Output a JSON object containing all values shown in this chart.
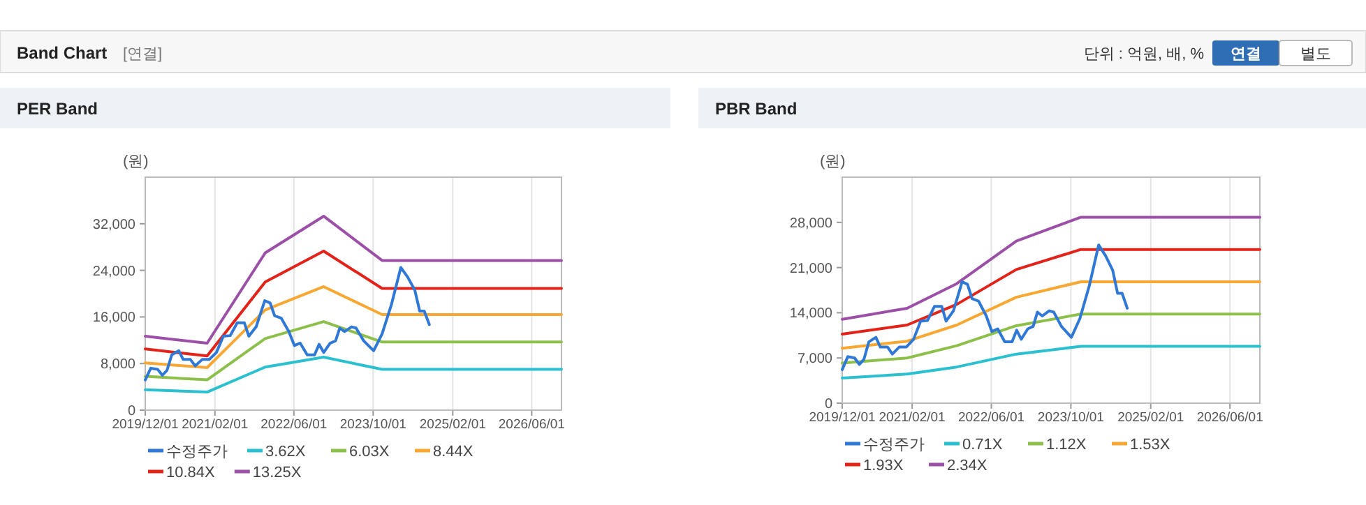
{
  "chart_data": [
    {
      "type": "line",
      "title": "PER Band",
      "ylabel": "(원)",
      "annotations": [
        "Band Chart",
        "[연결]",
        "단위 : 억원, 배, %",
        "연결",
        "별도"
      ],
      "xlim": [
        "2019-12-01",
        "2026-12-01"
      ],
      "xticks": [
        {
          "value": "2019-12-01",
          "label": "2019/12/01"
        },
        {
          "value": "2021-02-01",
          "label": "2021/02/01"
        },
        {
          "value": "2022-06-01",
          "label": "2022/06/01"
        },
        {
          "value": "2023-10-01",
          "label": "2023/10/01"
        },
        {
          "value": "2025-02-01",
          "label": "2025/02/01"
        },
        {
          "value": "2026-06-01",
          "label": "2026/06/01"
        }
      ],
      "ylim": [
        0,
        40000
      ],
      "yticks": [
        {
          "value": 0,
          "label": "0"
        },
        {
          "value": 8000,
          "label": "8,000"
        },
        {
          "value": 16000,
          "label": "16,000"
        },
        {
          "value": 24000,
          "label": "24,000"
        },
        {
          "value": 32000,
          "label": "32,000"
        }
      ],
      "grid": "x",
      "legend": "bottom",
      "series": [
        {
          "name": "수정주가",
          "color": "#2f78d6",
          "x": [
            "2019-12-01",
            "2020-01-04",
            "2020-02-15",
            "2020-03-15",
            "2020-04-12",
            "2020-05-12",
            "2020-06-24",
            "2020-07-21",
            "2020-09-03",
            "2020-10-03",
            "2020-11-15",
            "2020-12-28",
            "2021-02-10",
            "2021-03-25",
            "2021-05-06",
            "2021-06-18",
            "2021-08-01",
            "2021-08-28",
            "2021-10-12",
            "2021-12-04",
            "2022-01-06",
            "2022-02-03",
            "2022-03-15",
            "2022-05-01",
            "2022-06-04",
            "2022-07-10",
            "2022-08-22",
            "2022-10-06",
            "2022-11-03",
            "2022-12-01",
            "2023-01-10",
            "2023-02-12",
            "2023-03-10",
            "2023-04-09",
            "2023-05-21",
            "2023-06-18",
            "2023-08-04",
            "2023-10-04",
            "2023-11-25",
            "2024-01-22",
            "2024-03-19",
            "2024-05-01",
            "2024-06-13",
            "2024-07-13",
            "2024-08-10",
            "2024-09-10"
          ],
          "values": [
            5200,
            7200,
            7000,
            6000,
            6800,
            9500,
            10200,
            8700,
            8700,
            7600,
            8700,
            8700,
            9900,
            12700,
            12800,
            15000,
            15000,
            12700,
            14300,
            18800,
            18400,
            16200,
            15800,
            13500,
            11100,
            11500,
            9500,
            9500,
            11300,
            9900,
            11500,
            11900,
            14100,
            13500,
            14300,
            14100,
            11900,
            10200,
            13100,
            18200,
            24500,
            22800,
            20600,
            17000,
            17000,
            14700
          ]
        },
        {
          "name": "3.62X",
          "color": "#2bc0d0",
          "x": [
            "2019-12-01",
            "2020-12-15",
            "2021-12-07",
            "2022-12-01",
            "2023-11-25",
            "2026-12-01"
          ],
          "values": [
            3500,
            3100,
            7400,
            9100,
            7000,
            7000
          ]
        },
        {
          "name": "6.03X",
          "color": "#8dc04b",
          "x": [
            "2019-12-01",
            "2020-12-15",
            "2021-12-07",
            "2022-12-01",
            "2023-11-25",
            "2026-12-01"
          ],
          "values": [
            5800,
            5200,
            12300,
            15200,
            11700,
            11700
          ]
        },
        {
          "name": "8.44X",
          "color": "#f8a832",
          "x": [
            "2019-12-01",
            "2020-12-15",
            "2021-12-07",
            "2022-12-01",
            "2023-11-25",
            "2026-12-01"
          ],
          "values": [
            8100,
            7300,
            17200,
            21200,
            16400,
            16400
          ]
        },
        {
          "name": "10.84X",
          "color": "#e2231a",
          "x": [
            "2019-12-01",
            "2020-12-15",
            "2021-12-07",
            "2022-12-01",
            "2023-11-25",
            "2026-12-01"
          ],
          "values": [
            10500,
            9300,
            22000,
            27300,
            20900,
            20900
          ]
        },
        {
          "name": "13.25X",
          "color": "#9b4fa6",
          "x": [
            "2019-12-01",
            "2020-12-15",
            "2021-12-07",
            "2022-12-01",
            "2023-11-25",
            "2026-12-01"
          ],
          "values": [
            12700,
            11500,
            27000,
            33300,
            25700,
            25700
          ]
        }
      ]
    },
    {
      "type": "line",
      "title": "PBR Band",
      "ylabel": "(원)",
      "xlim": [
        "2019-12-01",
        "2026-12-01"
      ],
      "xticks": [
        {
          "value": "2019-12-01",
          "label": "2019/12/01"
        },
        {
          "value": "2021-02-01",
          "label": "2021/02/01"
        },
        {
          "value": "2022-06-01",
          "label": "2022/06/01"
        },
        {
          "value": "2023-10-01",
          "label": "2023/10/01"
        },
        {
          "value": "2025-02-01",
          "label": "2025/02/01"
        },
        {
          "value": "2026-06-01",
          "label": "2026/06/01"
        }
      ],
      "ylim": [
        0,
        35000
      ],
      "yticks": [
        {
          "value": 0,
          "label": "0"
        },
        {
          "value": 7000,
          "label": "7,000"
        },
        {
          "value": 14000,
          "label": "14,000"
        },
        {
          "value": 21000,
          "label": "21,000"
        },
        {
          "value": 28000,
          "label": "28,000"
        }
      ],
      "grid": "x",
      "legend": "bottom",
      "series": [
        {
          "name": "수정주가",
          "color": "#2f78d6",
          "x": [
            "2019-12-01",
            "2020-01-04",
            "2020-02-15",
            "2020-03-15",
            "2020-04-12",
            "2020-05-12",
            "2020-06-24",
            "2020-07-21",
            "2020-09-03",
            "2020-10-03",
            "2020-11-15",
            "2020-12-28",
            "2021-02-10",
            "2021-03-25",
            "2021-05-06",
            "2021-06-18",
            "2021-08-01",
            "2021-08-28",
            "2021-10-12",
            "2021-12-04",
            "2022-01-06",
            "2022-02-03",
            "2022-03-15",
            "2022-05-01",
            "2022-06-04",
            "2022-07-10",
            "2022-08-22",
            "2022-10-06",
            "2022-11-03",
            "2022-12-01",
            "2023-01-10",
            "2023-02-12",
            "2023-03-10",
            "2023-04-09",
            "2023-05-21",
            "2023-06-18",
            "2023-08-04",
            "2023-10-04",
            "2023-11-25",
            "2024-01-22",
            "2024-03-19",
            "2024-05-01",
            "2024-06-13",
            "2024-07-13",
            "2024-08-10",
            "2024-09-10"
          ],
          "values": [
            5200,
            7200,
            7000,
            6000,
            6800,
            9500,
            10200,
            8700,
            8700,
            7600,
            8700,
            8700,
            9900,
            12700,
            12800,
            15000,
            15000,
            12700,
            14300,
            18800,
            18400,
            16200,
            15800,
            13500,
            11100,
            11500,
            9500,
            9500,
            11300,
            9900,
            11500,
            11900,
            14100,
            13500,
            14300,
            14100,
            11900,
            10200,
            13100,
            18200,
            24500,
            22800,
            20600,
            17000,
            17000,
            14700
          ]
        },
        {
          "name": "0.71X",
          "color": "#2bc0d0",
          "x": [
            "2019-12-01",
            "2021-01-01",
            "2021-11-01",
            "2022-11-01",
            "2023-12-01",
            "2026-12-01"
          ],
          "values": [
            3900,
            4500,
            5600,
            7600,
            8800,
            8800
          ]
        },
        {
          "name": "1.12X",
          "color": "#8dc04b",
          "x": [
            "2019-12-01",
            "2021-01-01",
            "2021-11-01",
            "2022-11-01",
            "2023-12-01",
            "2026-12-01"
          ],
          "values": [
            6200,
            7000,
            8900,
            12000,
            13800,
            13800
          ]
        },
        {
          "name": "1.53X",
          "color": "#f8a832",
          "x": [
            "2019-12-01",
            "2021-01-01",
            "2021-11-01",
            "2022-11-01",
            "2023-12-01",
            "2026-12-01"
          ],
          "values": [
            8500,
            9600,
            12100,
            16400,
            18800,
            18800
          ]
        },
        {
          "name": "1.93X",
          "color": "#e2231a",
          "x": [
            "2019-12-01",
            "2021-01-01",
            "2021-11-01",
            "2022-11-01",
            "2023-12-01",
            "2026-12-01"
          ],
          "values": [
            10700,
            12100,
            15300,
            20700,
            23800,
            23800
          ]
        },
        {
          "name": "2.34X",
          "color": "#9b4fa6",
          "x": [
            "2019-12-01",
            "2021-01-01",
            "2021-11-01",
            "2022-11-01",
            "2023-12-01",
            "2026-12-01"
          ],
          "values": [
            13000,
            14700,
            18500,
            25100,
            28800,
            28800
          ]
        }
      ]
    }
  ]
}
